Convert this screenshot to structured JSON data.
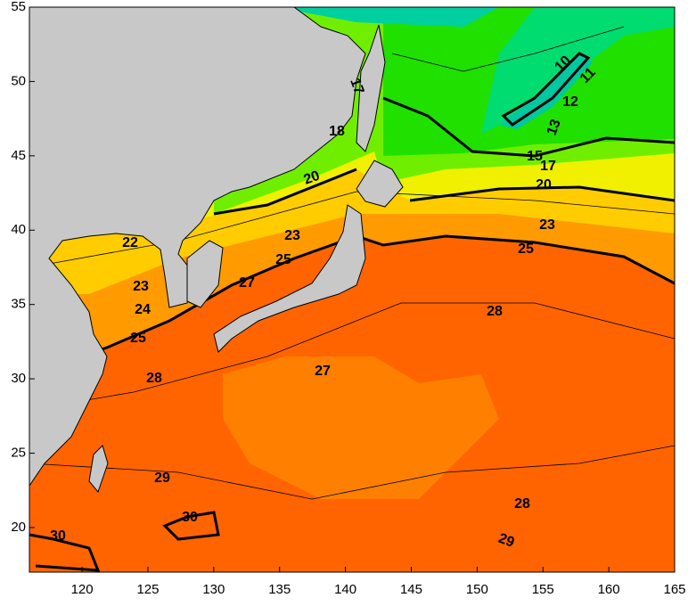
{
  "map": {
    "xlim": [
      116,
      165
    ],
    "ylim": [
      17,
      55
    ],
    "xticks": [
      120,
      125,
      130,
      135,
      140,
      145,
      150,
      155,
      160,
      165
    ],
    "yticks": [
      20,
      25,
      30,
      35,
      40,
      45,
      50,
      55
    ],
    "contour_labels": [
      10,
      11,
      12,
      13,
      15,
      17,
      17,
      18,
      20,
      20,
      22,
      23,
      23,
      23,
      24,
      25,
      25,
      25,
      27,
      27,
      28,
      28,
      28,
      29,
      29,
      30,
      30
    ]
  }
}
